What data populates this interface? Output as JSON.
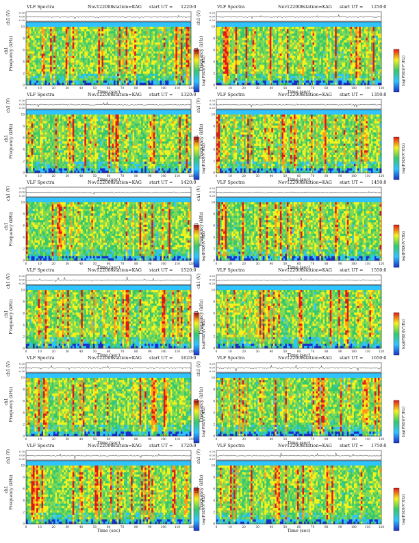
{
  "page": {
    "header_left": "VLF Spectra",
    "date": "Nov122008",
    "station": "station=KAG",
    "start_prefix": "start  UT  ="
  },
  "axes": {
    "time_label": "Time  (sec)",
    "freq_label": "Frequency  (kHz)",
    "channel_label": "ch1",
    "wave_label": "ch1 (V)",
    "colorbar_label": "log(PSD)(V²/Hz)",
    "x_ticks": [
      "0",
      "10",
      "20",
      "30",
      "40",
      "50",
      "60",
      "70",
      "80",
      "90",
      "100",
      "110",
      "120"
    ],
    "y_ticks": [
      "0",
      "2",
      "4",
      "6",
      "8",
      "10"
    ],
    "wave_ticks": [
      "0.20",
      "0.00",
      "-0.20"
    ]
  },
  "colors": {
    "scale_low": "#1b2fc9",
    "scale_mid_low": "#2fc4ff",
    "scale_mid": "#38c86b",
    "scale_mid_high": "#f4f21c",
    "scale_high": "#e51616"
  },
  "chart_data": [
    {
      "type": "heatmap",
      "start_ut": "1220:0",
      "xlabel": "Time  (sec)",
      "ylabel": "Frequency  (kHz)",
      "xlim": [
        0,
        120
      ],
      "ylim": [
        0,
        10
      ]
    },
    {
      "type": "heatmap",
      "start_ut": "1250:0",
      "xlabel": "Time  (sec)",
      "ylabel": "Frequency  (kHz)",
      "xlim": [
        0,
        120
      ],
      "ylim": [
        0,
        10
      ]
    },
    {
      "type": "heatmap",
      "start_ut": "1320:0",
      "xlabel": "Time  (sec)",
      "ylabel": "Frequency  (kHz)",
      "xlim": [
        0,
        120
      ],
      "ylim": [
        0,
        10
      ]
    },
    {
      "type": "heatmap",
      "start_ut": "1350:0",
      "xlabel": "Time  (sec)",
      "ylabel": "Frequency  (kHz)",
      "xlim": [
        0,
        120
      ],
      "ylim": [
        0,
        10
      ]
    },
    {
      "type": "heatmap",
      "start_ut": "1420:0",
      "xlabel": "Time  (sec)",
      "ylabel": "Frequency  (kHz)",
      "xlim": [
        0,
        120
      ],
      "ylim": [
        0,
        10
      ]
    },
    {
      "type": "heatmap",
      "start_ut": "1450:0",
      "xlabel": "Time  (sec)",
      "ylabel": "Frequency  (kHz)",
      "xlim": [
        0,
        120
      ],
      "ylim": [
        0,
        10
      ]
    },
    {
      "type": "heatmap",
      "start_ut": "1520:0",
      "xlabel": "Time  (sec)",
      "ylabel": "Frequency  (kHz)",
      "xlim": [
        0,
        120
      ],
      "ylim": [
        0,
        10
      ]
    },
    {
      "type": "heatmap",
      "start_ut": "1550:0",
      "xlabel": "Time  (sec)",
      "ylabel": "Frequency  (kHz)",
      "xlim": [
        0,
        120
      ],
      "ylim": [
        0,
        10
      ]
    },
    {
      "type": "heatmap",
      "start_ut": "1620:0",
      "xlabel": "Time  (sec)",
      "ylabel": "Frequency  (kHz)",
      "xlim": [
        0,
        120
      ],
      "ylim": [
        0,
        10
      ]
    },
    {
      "type": "heatmap",
      "start_ut": "1650:0",
      "xlabel": "Time  (sec)",
      "ylabel": "Frequency  (kHz)",
      "xlim": [
        0,
        120
      ],
      "ylim": [
        0,
        10
      ]
    },
    {
      "type": "heatmap",
      "start_ut": "1720:0",
      "xlabel": "Time  (sec)",
      "ylabel": "Frequency  (kHz)",
      "xlim": [
        0,
        120
      ],
      "ylim": [
        0,
        10
      ]
    },
    {
      "type": "heatmap",
      "start_ut": "1750:0",
      "xlabel": "Time  (sec)",
      "ylabel": "Frequency  (kHz)",
      "xlim": [
        0,
        120
      ],
      "ylim": [
        0,
        10
      ]
    }
  ]
}
